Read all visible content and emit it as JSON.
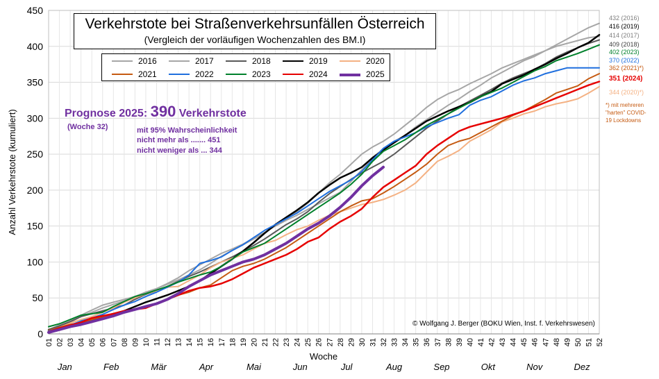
{
  "title": "Verkehrstote bei Straßenverkehrsunfällen Österreich",
  "subtitle": "(Vergleich der vorläufigen Wochenzahlen  des BM.I)",
  "forecast": {
    "label": "Prognose 2025:",
    "value": "390",
    "unit": "Verkehrstote",
    "week": "(Woche  32)",
    "line1": "mit 95% Wahrscheinlichkeit",
    "line2": "nicht mehr als .......  451",
    "line3": "nicht  weniger als ...  344"
  },
  "credit": "© Wolfgang J. Berger (BOKU Wien, Inst. f. Verkehrswesen)",
  "end_note": "*) mit mehreren\n\"harten\" COVID-\n19 Lockdowns",
  "chart_data": {
    "type": "line",
    "ylabel": "Anzahl Verkehrstote  (kumuliert)",
    "xlabel": "Woche",
    "ylim": [
      0,
      450
    ],
    "yticks": [
      0,
      50,
      100,
      150,
      200,
      250,
      300,
      350,
      400,
      450
    ],
    "xlim": [
      1,
      52
    ],
    "x_tick_labels": [
      "01",
      "02",
      "03",
      "04",
      "05",
      "06",
      "07",
      "08",
      "09",
      "10",
      "11",
      "12",
      "13",
      "14",
      "15",
      "16",
      "17",
      "18",
      "19",
      "20",
      "21",
      "22",
      "23",
      "24",
      "25",
      "26",
      "27",
      "28",
      "29",
      "30",
      "31",
      "32",
      "33",
      "34",
      "35",
      "36",
      "37",
      "38",
      "39",
      "40",
      "41",
      "42",
      "43",
      "44",
      "45",
      "46",
      "47",
      "48",
      "49",
      "50",
      "51",
      "52"
    ],
    "months": [
      {
        "label": "Jan",
        "week": 2.5
      },
      {
        "label": "Feb",
        "week": 6.8
      },
      {
        "label": "Mär",
        "week": 11.2
      },
      {
        "label": "Apr",
        "week": 15.6
      },
      {
        "label": "Mai",
        "week": 20.0
      },
      {
        "label": "Jun",
        "week": 24.3
      },
      {
        "label": "Jul",
        "week": 28.6
      },
      {
        "label": "Aug",
        "week": 33.0
      },
      {
        "label": "Sep",
        "week": 37.4
      },
      {
        "label": "Okt",
        "week": 41.7
      },
      {
        "label": "Nov",
        "week": 46.0
      },
      {
        "label": "Dez",
        "week": 50.4
      }
    ],
    "grid": true,
    "legend": "top-center",
    "series": [
      {
        "name": "2016",
        "color": "#a6a6a6",
        "width": 2,
        "end_label": "432 (2016)",
        "values": [
          6,
          12,
          18,
          26,
          33,
          40,
          44,
          48,
          52,
          58,
          63,
          70,
          78,
          88,
          96,
          104,
          112,
          118,
          125,
          133,
          141,
          150,
          158,
          165,
          173,
          181,
          189,
          197,
          212,
          228,
          244,
          258,
          268,
          276,
          288,
          298,
          308,
          318,
          327,
          337,
          346,
          356,
          364,
          372,
          380,
          386,
          394,
          402,
          410,
          418,
          426,
          432
        ]
      },
      {
        "name": "2017",
        "color": "#a6a6a6",
        "width": 2,
        "end_label": "414 (2017)",
        "values": [
          5,
          10,
          16,
          24,
          30,
          36,
          41,
          46,
          52,
          58,
          63,
          69,
          75,
          82,
          89,
          98,
          108,
          116,
          124,
          132,
          140,
          151,
          160,
          170,
          182,
          196,
          210,
          222,
          236,
          250,
          260,
          268,
          278,
          290,
          302,
          315,
          326,
          334,
          340,
          348,
          355,
          362,
          370,
          376,
          382,
          388,
          394,
          400,
          404,
          408,
          412,
          414
        ]
      },
      {
        "name": "2018",
        "color": "#595959",
        "width": 2,
        "end_label": "409 (2018)",
        "values": [
          6,
          11,
          17,
          24,
          28,
          32,
          36,
          40,
          48,
          55,
          60,
          66,
          73,
          80,
          86,
          93,
          100,
          107,
          115,
          123,
          132,
          142,
          152,
          160,
          170,
          183,
          195,
          205,
          215,
          224,
          232,
          240,
          250,
          262,
          274,
          286,
          296,
          306,
          316,
          324,
          332,
          340,
          349,
          356,
          362,
          368,
          376,
          385,
          392,
          398,
          404,
          409
        ]
      },
      {
        "name": "2019",
        "color": "#000000",
        "width": 2.5,
        "end_label": "416 (2019)",
        "values": [
          5,
          8,
          12,
          16,
          19,
          24,
          28,
          32,
          38,
          44,
          49,
          54,
          60,
          66,
          74,
          84,
          94,
          104,
          115,
          127,
          140,
          152,
          162,
          172,
          183,
          196,
          207,
          217,
          224,
          232,
          245,
          256,
          266,
          276,
          286,
          296,
          303,
          310,
          316,
          322,
          330,
          337,
          348,
          354,
          360,
          368,
          375,
          383,
          390,
          398,
          405,
          416
        ]
      },
      {
        "name": "2020",
        "color": "#f4b183",
        "width": 2,
        "end_label": "344 (2020)*)",
        "values": [
          4,
          9,
          15,
          20,
          24,
          30,
          36,
          44,
          50,
          56,
          60,
          65,
          66,
          74,
          82,
          92,
          100,
          105,
          110,
          118,
          126,
          130,
          138,
          145,
          150,
          158,
          165,
          170,
          175,
          180,
          183,
          187,
          193,
          200,
          210,
          225,
          240,
          247,
          255,
          268,
          276,
          284,
          295,
          300,
          306,
          310,
          316,
          320,
          323,
          327,
          335,
          344
        ]
      },
      {
        "name": "2021",
        "color": "#c55a11",
        "width": 2,
        "end_label": "362 (2021)*)",
        "values": [
          5,
          9,
          13,
          16,
          20,
          24,
          27,
          30,
          35,
          38,
          42,
          48,
          54,
          58,
          64,
          68,
          78,
          88,
          94,
          98,
          104,
          112,
          120,
          130,
          140,
          150,
          160,
          170,
          178,
          185,
          188,
          196,
          205,
          215,
          225,
          236,
          250,
          262,
          268,
          272,
          280,
          288,
          296,
          304,
          310,
          318,
          326,
          335,
          340,
          345,
          355,
          362
        ]
      },
      {
        "name": "2022",
        "color": "#1f6fde",
        "width": 2,
        "end_label": "370 (2022)",
        "values": [
          4,
          8,
          12,
          18,
          22,
          27,
          34,
          40,
          45,
          52,
          58,
          65,
          72,
          82,
          98,
          102,
          107,
          116,
          124,
          134,
          144,
          152,
          160,
          168,
          178,
          188,
          198,
          206,
          214,
          226,
          242,
          258,
          268,
          274,
          280,
          288,
          294,
          300,
          305,
          318,
          325,
          330,
          338,
          346,
          352,
          356,
          362,
          366,
          370,
          370,
          370,
          370
        ]
      },
      {
        "name": "2023",
        "color": "#00802b",
        "width": 2,
        "end_label": "402 (2023)",
        "values": [
          10,
          14,
          20,
          26,
          28,
          30,
          38,
          45,
          52,
          56,
          61,
          66,
          72,
          77,
          82,
          86,
          94,
          104,
          114,
          120,
          126,
          136,
          146,
          156,
          166,
          176,
          186,
          196,
          208,
          222,
          240,
          254,
          262,
          270,
          280,
          290,
          298,
          306,
          314,
          322,
          330,
          336,
          342,
          350,
          358,
          366,
          372,
          380,
          385,
          390,
          396,
          402
        ]
      },
      {
        "name": "2024",
        "color": "#e60000",
        "width": 2.5,
        "end_label": "351 (2024)",
        "values": [
          3,
          8,
          12,
          16,
          22,
          25,
          28,
          32,
          34,
          36,
          42,
          48,
          54,
          60,
          64,
          66,
          70,
          76,
          84,
          92,
          98,
          104,
          110,
          118,
          128,
          134,
          146,
          156,
          164,
          174,
          190,
          204,
          214,
          224,
          234,
          250,
          262,
          272,
          282,
          288,
          292,
          296,
          300,
          305,
          310,
          316,
          322,
          328,
          334,
          340,
          346,
          351
        ]
      },
      {
        "name": "2025",
        "color": "#7030a0",
        "width": 4,
        "end_label": "",
        "values": [
          2,
          6,
          10,
          13,
          17,
          21,
          25,
          30,
          34,
          38,
          42,
          48,
          56,
          66,
          74,
          82,
          88,
          94,
          100,
          104,
          110,
          118,
          126,
          136,
          146,
          154,
          164,
          176,
          190,
          206,
          220,
          232
        ]
      }
    ]
  }
}
